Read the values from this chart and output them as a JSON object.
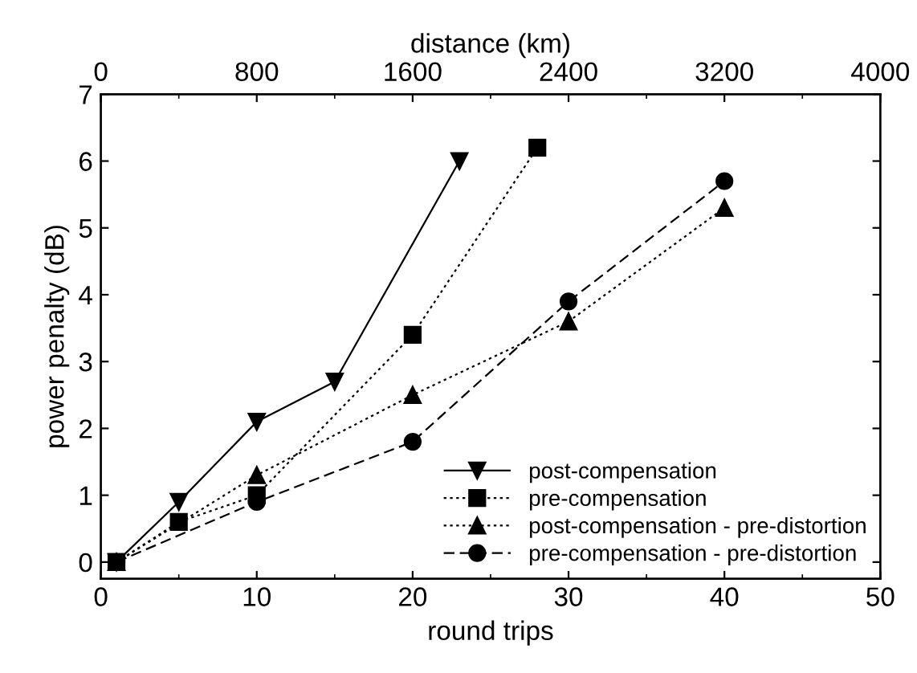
{
  "chart_data": {
    "type": "line",
    "xlabel": "round trips",
    "ylabel": "power penalty (dB)",
    "x2label": "distance (km)",
    "xlim": [
      0,
      50
    ],
    "xticks": [
      0,
      10,
      20,
      30,
      40,
      50
    ],
    "ylim": [
      -0.25,
      7
    ],
    "yticks": [
      0,
      1,
      2,
      3,
      4,
      5,
      6,
      7
    ],
    "x2lim": [
      0,
      4000
    ],
    "x2ticks": [
      0,
      800,
      1600,
      2400,
      3200,
      4000
    ],
    "grid": false,
    "legend": "bottom right",
    "series": [
      {
        "name": "post-compensation",
        "color": "#000000",
        "marker": "triangle_down",
        "line_style": "solid",
        "x": [
          1,
          5,
          10,
          15,
          23
        ],
        "values": [
          0,
          0.9,
          2.1,
          2.7,
          6.0
        ]
      },
      {
        "name": "pre-compensation",
        "color": "#000000",
        "marker": "square",
        "line_style": "dotted",
        "x": [
          1,
          5,
          10,
          20,
          28
        ],
        "values": [
          0,
          0.6,
          1.0,
          3.4,
          6.2
        ]
      },
      {
        "name": "post-compensation - pre-distortion",
        "color": "#000000",
        "marker": "triangle",
        "line_style": "dotted",
        "x": [
          1,
          10,
          20,
          30,
          40
        ],
        "values": [
          0,
          1.3,
          2.5,
          3.6,
          5.3
        ]
      },
      {
        "name": "pre-compensation - pre-distortion",
        "color": "#000000",
        "marker": "circle",
        "line_style": "dashed",
        "x": [
          1,
          10,
          20,
          30,
          40
        ],
        "values": [
          0,
          0.9,
          1.8,
          3.9,
          5.7
        ]
      }
    ]
  }
}
